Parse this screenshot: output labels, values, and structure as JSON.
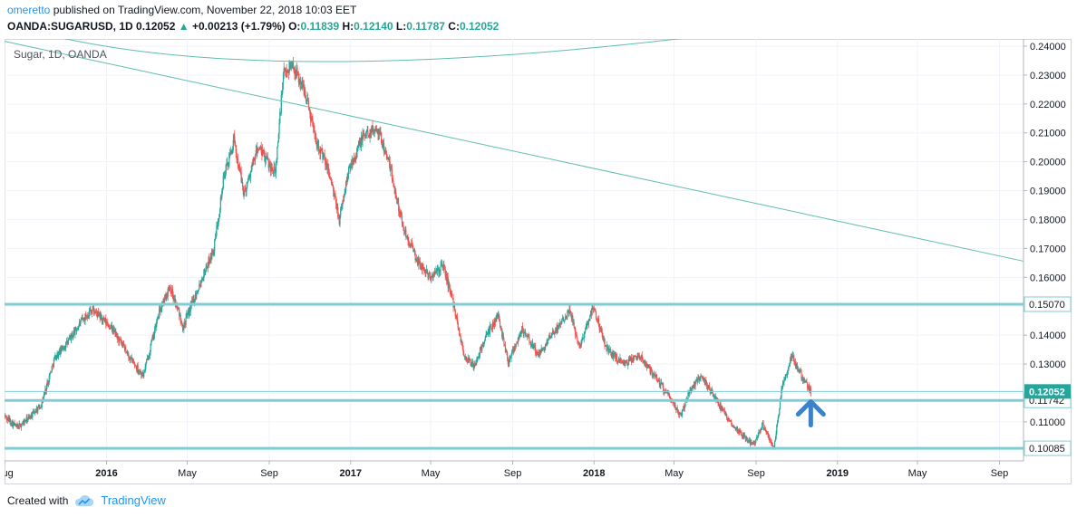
{
  "header": {
    "author": "omeretto",
    "published_text": "published on TradingView.com, November 22, 2018 10:03 EET",
    "symbol": "OANDA:SUGARUSD, 1D",
    "last": "0.12052",
    "up_glyph": "▲",
    "change": "+0.00213 (+1.79%)",
    "o_label": "O:",
    "o_value": "0.11839",
    "h_label": "H:",
    "h_value": "0.12140",
    "l_label": "L:",
    "l_value": "0.11787",
    "c_label": "C:",
    "c_value": "0.12052"
  },
  "chart_title": "Sugar, 1D, OANDA",
  "footer": {
    "created_with": "Created with",
    "brand": "TradingView",
    "logo_icon": "tradingview-cloud-icon"
  },
  "colors": {
    "up": "#26a69a",
    "down": "#ef5350",
    "level": "#82cdd3",
    "trendline": "#5fbdb1",
    "price_tag": "#26a69a",
    "arrow": "#3d82c8",
    "grid": "#f0f3fa",
    "axis_text": "#131722"
  },
  "chart_data": {
    "type": "candlestick",
    "symbol": "OANDA:SUGARUSD",
    "interval": "1D",
    "x_range": [
      "2015-08-01",
      "2019-10-07"
    ],
    "y_range": [
      0.0965,
      0.2425
    ],
    "y_ticks": [
      "0.24000",
      "0.23000",
      "0.22000",
      "0.21000",
      "0.20000",
      "0.19000",
      "0.18000",
      "0.17000",
      "0.16000",
      "0.15000",
      "0.14000",
      "0.13000",
      "0.12000",
      "0.11000",
      "0.10000"
    ],
    "x_ticks": [
      {
        "label": "Aug",
        "date": "2015-08-01",
        "bold": false
      },
      {
        "label": "2016",
        "date": "2016-01-01",
        "bold": true
      },
      {
        "label": "May",
        "date": "2016-05-01",
        "bold": false
      },
      {
        "label": "Sep",
        "date": "2016-09-01",
        "bold": false
      },
      {
        "label": "2017",
        "date": "2017-01-01",
        "bold": true
      },
      {
        "label": "May",
        "date": "2017-05-01",
        "bold": false
      },
      {
        "label": "Sep",
        "date": "2017-09-01",
        "bold": false
      },
      {
        "label": "2018",
        "date": "2018-01-01",
        "bold": true
      },
      {
        "label": "May",
        "date": "2018-05-01",
        "bold": false
      },
      {
        "label": "Sep",
        "date": "2018-09-01",
        "bold": false
      },
      {
        "label": "2019",
        "date": "2019-01-01",
        "bold": true
      },
      {
        "label": "May",
        "date": "2019-05-01",
        "bold": false
      },
      {
        "label": "Sep",
        "date": "2019-09-01",
        "bold": false
      }
    ],
    "close_path": [
      [
        "2015-08-01",
        0.112
      ],
      [
        "2015-08-20",
        0.108
      ],
      [
        "2015-09-05",
        0.111
      ],
      [
        "2015-09-25",
        0.116
      ],
      [
        "2015-10-15",
        0.132
      ],
      [
        "2015-11-05",
        0.138
      ],
      [
        "2015-11-25",
        0.145
      ],
      [
        "2015-12-10",
        0.149
      ],
      [
        "2016-01-10",
        0.142
      ],
      [
        "2016-02-05",
        0.132
      ],
      [
        "2016-02-25",
        0.126
      ],
      [
        "2016-03-20",
        0.148
      ],
      [
        "2016-04-05",
        0.157
      ],
      [
        "2016-04-25",
        0.143
      ],
      [
        "2016-05-20",
        0.158
      ],
      [
        "2016-06-10",
        0.17
      ],
      [
        "2016-06-25",
        0.195
      ],
      [
        "2016-07-10",
        0.207
      ],
      [
        "2016-07-25",
        0.189
      ],
      [
        "2016-08-15",
        0.205
      ],
      [
        "2016-09-10",
        0.196
      ],
      [
        "2016-09-22",
        0.23
      ],
      [
        "2016-10-05",
        0.234
      ],
      [
        "2016-10-25",
        0.224
      ],
      [
        "2016-11-10",
        0.208
      ],
      [
        "2016-11-30",
        0.196
      ],
      [
        "2016-12-15",
        0.18
      ],
      [
        "2016-12-30",
        0.198
      ],
      [
        "2017-01-20",
        0.209
      ],
      [
        "2017-02-10",
        0.212
      ],
      [
        "2017-02-28",
        0.199
      ],
      [
        "2017-03-20",
        0.178
      ],
      [
        "2017-04-10",
        0.166
      ],
      [
        "2017-04-30",
        0.16
      ],
      [
        "2017-05-20",
        0.164
      ],
      [
        "2017-06-05",
        0.15
      ],
      [
        "2017-06-20",
        0.133
      ],
      [
        "2017-07-05",
        0.129
      ],
      [
        "2017-07-20",
        0.138
      ],
      [
        "2017-08-10",
        0.147
      ],
      [
        "2017-08-25",
        0.131
      ],
      [
        "2017-09-15",
        0.142
      ],
      [
        "2017-10-10",
        0.133
      ],
      [
        "2017-11-05",
        0.142
      ],
      [
        "2017-11-25",
        0.149
      ],
      [
        "2017-12-10",
        0.136
      ],
      [
        "2017-12-31",
        0.15
      ],
      [
        "2018-01-20",
        0.135
      ],
      [
        "2018-02-15",
        0.13
      ],
      [
        "2018-03-10",
        0.133
      ],
      [
        "2018-04-05",
        0.125
      ],
      [
        "2018-04-25",
        0.118
      ],
      [
        "2018-05-10",
        0.112
      ],
      [
        "2018-05-25",
        0.121
      ],
      [
        "2018-06-10",
        0.126
      ],
      [
        "2018-06-30",
        0.119
      ],
      [
        "2018-07-20",
        0.111
      ],
      [
        "2018-08-10",
        0.106
      ],
      [
        "2018-08-28",
        0.102
      ],
      [
        "2018-09-10",
        0.109
      ],
      [
        "2018-09-28",
        0.101
      ],
      [
        "2018-10-10",
        0.122
      ],
      [
        "2018-10-25",
        0.133
      ],
      [
        "2018-11-05",
        0.127
      ],
      [
        "2018-11-22",
        0.12052
      ]
    ],
    "levels": [
      {
        "price": 0.1507,
        "label": "0.15070"
      },
      {
        "price": 0.11742,
        "label": "0.11742"
      },
      {
        "price": 0.10085,
        "label": "0.10085"
      }
    ],
    "last_price": {
      "price": 0.12052,
      "label": "0.12052"
    },
    "trendline": [
      [
        "2015-08-01",
        0.2417
      ],
      [
        "2019-10-07",
        0.1656
      ]
    ],
    "arc": [
      [
        "2015-08-01",
        0.248
      ],
      [
        "2016-09-26",
        0.2348
      ],
      [
        "2018-05-25",
        0.243
      ]
    ],
    "annotation": {
      "type": "arrow-up",
      "date": "2018-11-22",
      "price": 0.117
    }
  }
}
